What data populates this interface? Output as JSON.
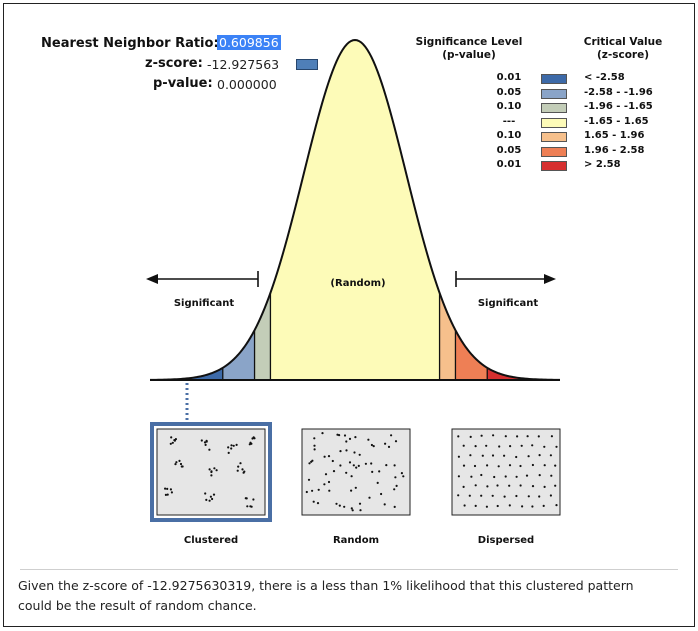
{
  "stats": {
    "nnr_label": "Nearest Neighbor Ratio:",
    "nnr_value": "0.609856",
    "z_label": "z-score:",
    "z_value": "-12.927563",
    "p_label": "p-value:",
    "p_value": "0.000000"
  },
  "legend": {
    "sig_header_line1": "Significance Level",
    "sig_header_line2": "(p-value)",
    "crit_header_line1": "Critical Value",
    "crit_header_line2": "(z-score)",
    "rows": [
      {
        "p": "0.01",
        "z": "< -2.58",
        "color": "#3d6aa8"
      },
      {
        "p": "0.05",
        "z": "-2.58 - -1.96",
        "color": "#8aa4c8"
      },
      {
        "p": "0.10",
        "z": "-1.96 - -1.65",
        "color": "#c3cdb8"
      },
      {
        "p": "---",
        "z": "-1.65 - 1.65",
        "color": "#fdfbb8"
      },
      {
        "p": "0.10",
        "z": "1.65 - 1.96",
        "color": "#f6c08c"
      },
      {
        "p": "0.05",
        "z": "1.96 - 2.58",
        "color": "#ee7f55"
      },
      {
        "p": "0.01",
        "z": "> 2.58",
        "color": "#d63030"
      }
    ]
  },
  "chart_data": {
    "type": "area",
    "title": "",
    "xlabel": "",
    "ylabel": "",
    "distribution": "standard normal",
    "xlim": [
      -4,
      4
    ],
    "bands": [
      {
        "from": -4,
        "to": -2.58,
        "color": "#3d6aa8"
      },
      {
        "from": -2.58,
        "to": -1.96,
        "color": "#8aa4c8"
      },
      {
        "from": -1.96,
        "to": -1.65,
        "color": "#c3cdb8"
      },
      {
        "from": -1.65,
        "to": 1.65,
        "color": "#fdfbb8"
      },
      {
        "from": 1.65,
        "to": 1.96,
        "color": "#f6c08c"
      },
      {
        "from": 1.96,
        "to": 2.58,
        "color": "#ee7f55"
      },
      {
        "from": 2.58,
        "to": 4,
        "color": "#d63030"
      }
    ],
    "annotations": {
      "center": "(Random)",
      "left": "Significant",
      "right": "Significant"
    },
    "observed_z": -12.927563
  },
  "patterns": [
    {
      "label": "Clustered",
      "selected": true
    },
    {
      "label": "Random",
      "selected": false
    },
    {
      "label": "Dispersed",
      "selected": false
    }
  ],
  "conclusion": "Given the z-score of -12.9275630319, there is a less than 1% likelihood that this clustered pattern could be the result of random chance."
}
